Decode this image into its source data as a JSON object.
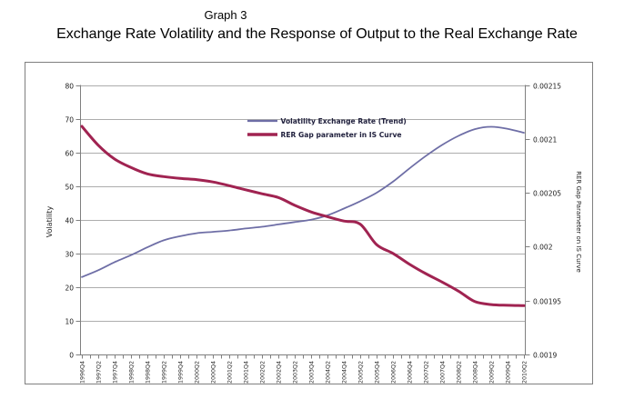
{
  "page": {
    "title": "Graph 3",
    "subtitle": "Exchange Rate Volatility and the Response of Output to the Real Exchange Rate"
  },
  "chart_data": {
    "type": "line",
    "title": "Graph 3",
    "subtitle": "Exchange Rate Volatility and the Response of Output to the Real Exchange Rate",
    "grid": "horizontal",
    "legend_position": "top-center-inside",
    "categories": [
      "1996Q4",
      "1997Q2",
      "1997Q4",
      "1998Q2",
      "1998Q4",
      "1999Q2",
      "1999Q4",
      "2000Q2",
      "2000Q4",
      "2001Q2",
      "2001Q4",
      "2002Q2",
      "2002Q4",
      "2003Q2",
      "2003Q4",
      "2004Q2",
      "2004Q4",
      "2005Q2",
      "2005Q4",
      "2006Q2",
      "2006Q4",
      "2007Q2",
      "2007Q4",
      "2008Q2",
      "2008Q4",
      "2009Q2",
      "2009Q4",
      "2010Q2"
    ],
    "left_axis": {
      "label": "Volatility",
      "min": 0,
      "max": 80,
      "step": 10,
      "ticks": [
        "0",
        "10",
        "20",
        "30",
        "40",
        "50",
        "60",
        "70",
        "80"
      ]
    },
    "right_axis": {
      "label": "RER Gap Parameter on IS Curve",
      "min": 0.0019,
      "max": 0.00215,
      "step": 5e-05,
      "ticks": [
        "0.0019",
        "0.00195",
        "0.002",
        "0.00205",
        "0.0021",
        "0.00215"
      ]
    },
    "series": [
      {
        "name": "Volatility Exchange Rate (Trend)",
        "axis": "left",
        "color": "#6e6ea6",
        "line_width": 1.8,
        "values": [
          23.0,
          25.0,
          27.4,
          29.5,
          31.8,
          33.9,
          35.1,
          36.0,
          36.4,
          36.8,
          37.4,
          37.9,
          38.6,
          39.3,
          40.0,
          41.3,
          43.3,
          45.5,
          48.0,
          51.3,
          55.2,
          58.9,
          62.2,
          64.9,
          66.9,
          67.6,
          67.0,
          65.8
        ]
      },
      {
        "name": "RER Gap parameter in IS Curve",
        "axis": "right",
        "color": "#a02351",
        "line_width": 3.0,
        "values": [
          0.0021116,
          0.0020941,
          0.0020813,
          0.0020734,
          0.0020675,
          0.002065,
          0.0020634,
          0.0020622,
          0.00206,
          0.0020566,
          0.0020528,
          0.0020491,
          0.0020456,
          0.0020384,
          0.0020322,
          0.0020278,
          0.0020238,
          0.0020209,
          0.0020019,
          0.0019938,
          0.0019838,
          0.001975,
          0.0019672,
          0.0019588,
          0.0019491,
          0.0019463,
          0.0019456,
          0.0019453
        ]
      }
    ]
  },
  "colors": {
    "grid": "#adadad",
    "axis": "#7f7f7f",
    "frame_border": "#7f7f7f",
    "tick_text": "#1a1a1a",
    "x_tick_text": "#262626",
    "legend_text": "#1f1f3c",
    "background": "#ffffff"
  }
}
